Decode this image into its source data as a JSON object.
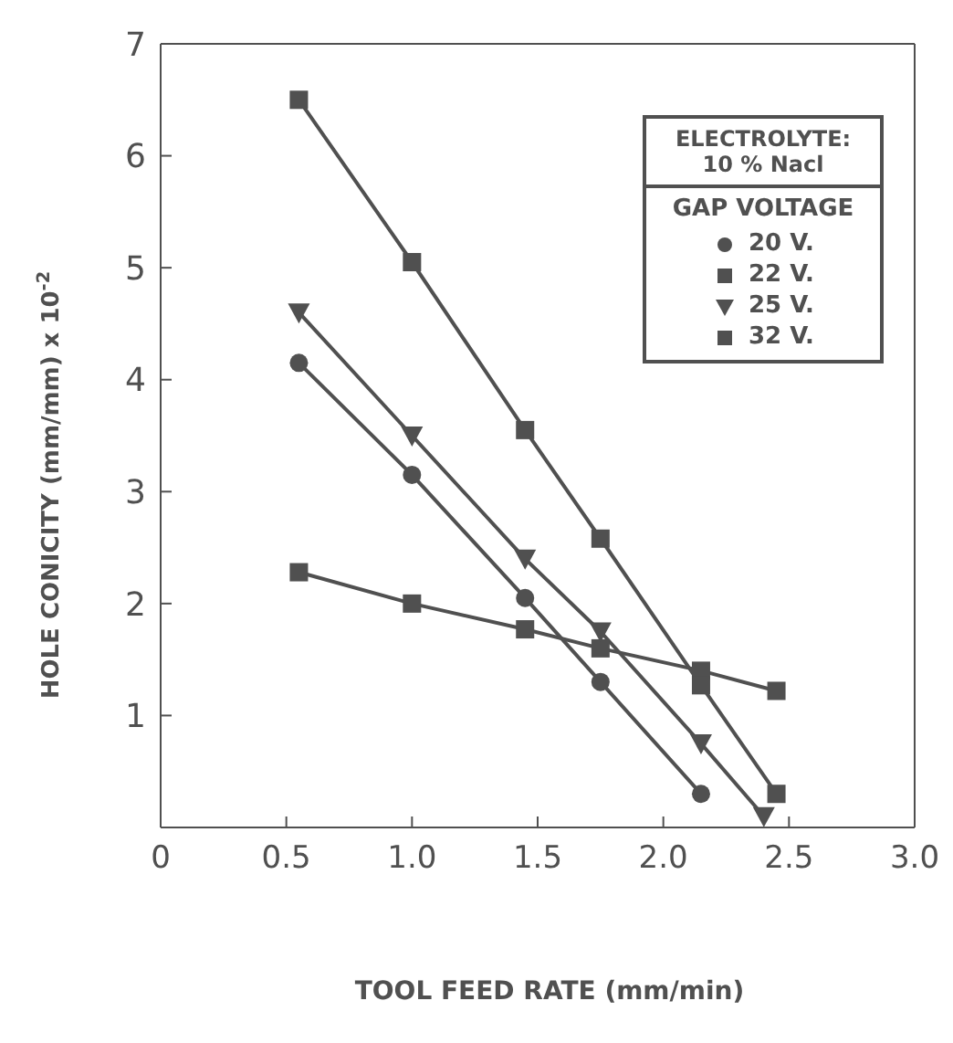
{
  "chart_data": {
    "type": "line",
    "xlabel": "TOOL FEED RATE (mm/min)",
    "ylabel": "HOLE CONICITY (mm/mm) x 10$^{-2}$",
    "legend_title": "GAP VOLTAGE",
    "annotations": [
      "ELECTROLYTE:",
      "10 % Nacl"
    ],
    "legend": "top right",
    "grid": false,
    "xlim": [
      0,
      3
    ],
    "xticks": [
      0,
      0.5,
      {
        "value": 1,
        "label": "1.0"
      },
      1.5,
      {
        "value": 2,
        "label": "2.0"
      },
      2.5,
      {
        "value": 3,
        "label": "3.0"
      }
    ],
    "ylim": [
      0,
      7
    ],
    "yticks": [
      1,
      2,
      3,
      4,
      5,
      6,
      7
    ],
    "series": [
      {
        "name": "20 V.",
        "color": "#505050",
        "marker": "circle",
        "x": [
          0.55,
          1.0,
          1.45,
          1.75,
          2.15
        ],
        "values": [
          4.15,
          3.15,
          2.05,
          1.3,
          0.3
        ]
      },
      {
        "name": "22 V.",
        "color": "#505050",
        "marker": "square",
        "x": [
          0.55,
          1.0,
          1.45,
          1.75,
          2.15,
          2.45
        ],
        "values": [
          2.28,
          2.0,
          1.77,
          1.6,
          1.4,
          1.22
        ]
      },
      {
        "name": "25 V.",
        "color": "#505050",
        "marker": "triangle",
        "x": [
          0.55,
          1.0,
          1.45,
          1.75,
          2.15,
          2.4
        ],
        "values": [
          4.6,
          3.5,
          2.4,
          1.75,
          0.75,
          0.1
        ]
      },
      {
        "name": "32 V.",
        "color": "#505050",
        "marker": "square",
        "x": [
          0.55,
          1.0,
          1.45,
          1.75,
          2.15,
          2.45
        ],
        "values": [
          6.5,
          5.05,
          3.55,
          2.58,
          1.27,
          0.3
        ]
      }
    ]
  }
}
